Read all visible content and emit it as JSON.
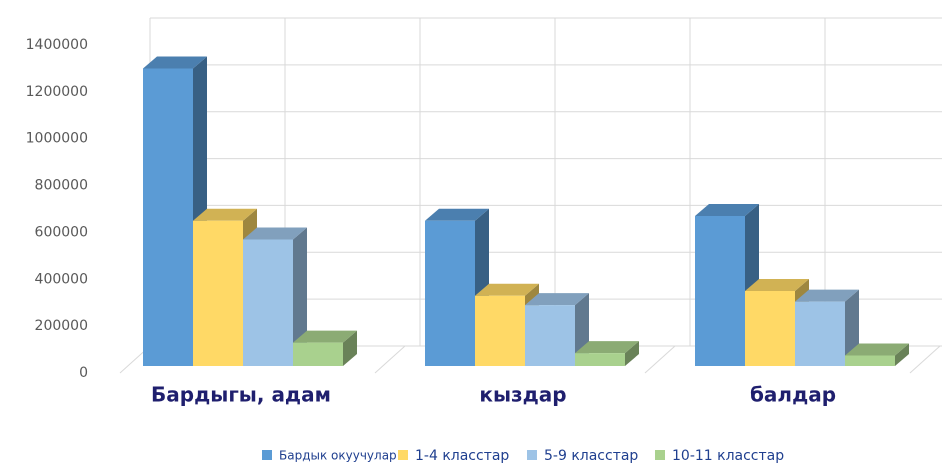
{
  "chart_data": {
    "type": "bar3d",
    "categories": [
      "Бардыгы, адам",
      "кыздар",
      "балдар"
    ],
    "series": [
      {
        "name": "Бардык окуучулар",
        "color": "#5b9bd5",
        "values": [
          1270000,
          620000,
          640000
        ]
      },
      {
        "name": "1-4 класстар",
        "color": "#ffd966",
        "values": [
          620000,
          300000,
          320000
        ]
      },
      {
        "name": "5-9 класстар",
        "color": "#9dc3e6",
        "values": [
          540000,
          260000,
          275000
        ]
      },
      {
        "name": "10-11 класстар",
        "color": "#a9d18e",
        "values": [
          100000,
          55000,
          45000
        ]
      }
    ],
    "ylim": [
      0,
      1400000
    ],
    "yticks": [
      0,
      200000,
      400000,
      600000,
      800000,
      1000000,
      1200000,
      1400000
    ],
    "grid": true
  }
}
